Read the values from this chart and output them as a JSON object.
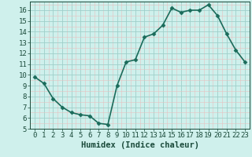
{
  "xlabel": "Humidex (Indice chaleur)",
  "ylabel": "",
  "x": [
    0,
    1,
    2,
    3,
    4,
    5,
    6,
    7,
    8,
    9,
    10,
    11,
    12,
    13,
    14,
    15,
    16,
    17,
    18,
    19,
    20,
    21,
    22,
    23
  ],
  "y": [
    9.8,
    9.2,
    7.8,
    7.0,
    6.5,
    6.3,
    6.2,
    5.5,
    5.4,
    9.0,
    11.2,
    11.4,
    13.5,
    13.8,
    14.6,
    16.2,
    15.8,
    16.0,
    16.0,
    16.5,
    15.5,
    13.8,
    12.3,
    11.2
  ],
  "line_color": "#1a6b5a",
  "marker": "D",
  "marker_size": 2.5,
  "bg_color": "#cff0ec",
  "major_grid_color": "#9ecfca",
  "minor_grid_color": "#e8c0c0",
  "tick_color": "#1a4a3a",
  "xlim": [
    -0.5,
    23.5
  ],
  "ylim": [
    5,
    16.8
  ],
  "yticks": [
    5,
    6,
    7,
    8,
    9,
    10,
    11,
    12,
    13,
    14,
    15,
    16
  ],
  "xticks": [
    0,
    1,
    2,
    3,
    4,
    5,
    6,
    7,
    8,
    9,
    10,
    11,
    12,
    13,
    14,
    15,
    16,
    17,
    18,
    19,
    20,
    21,
    22,
    23
  ],
  "xlabel_fontsize": 7.5,
  "tick_fontsize": 6.5,
  "line_width": 1.2
}
